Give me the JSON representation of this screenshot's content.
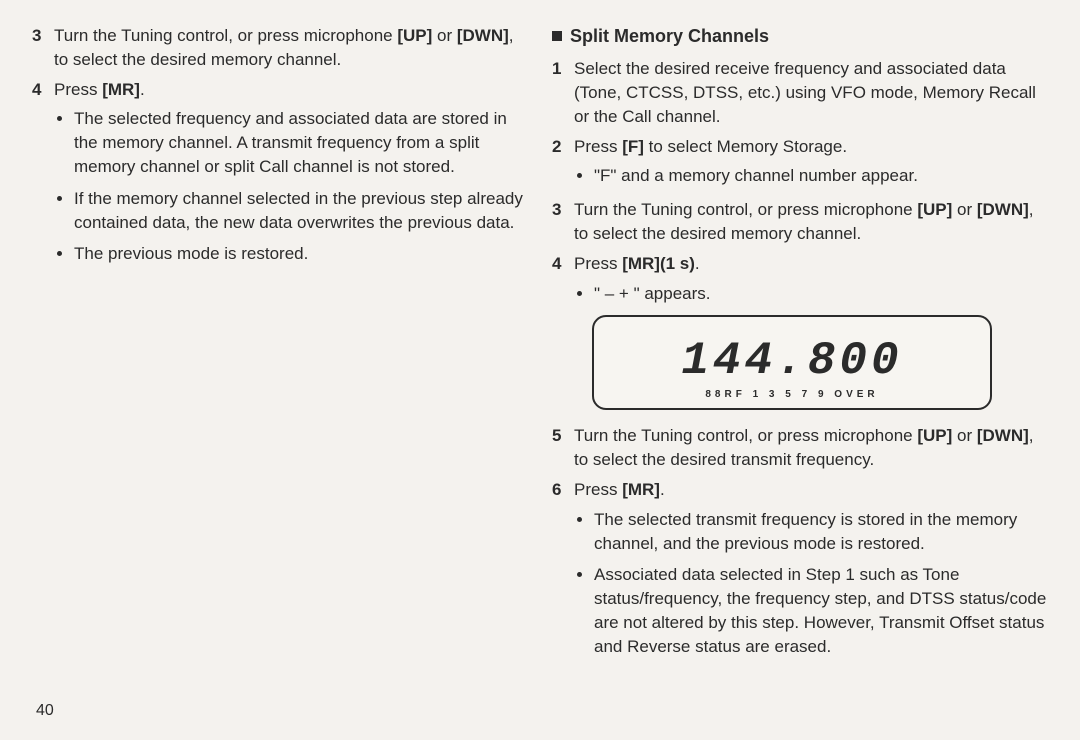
{
  "left": {
    "step3_num": "3",
    "step3_text_a": "Turn the Tuning control, or press microphone ",
    "step3_key1": "[UP]",
    "step3_text_b": " or ",
    "step3_key2": "[DWN]",
    "step3_text_c": ", to select the desired memory channel.",
    "step4_num": "4",
    "step4_text_a": "Press ",
    "step4_key1": "[MR]",
    "step4_text_b": ".",
    "bullets": [
      "The selected frequency and associated data are stored in the memory channel. A transmit frequency from a split memory channel or split Call channel is not stored.",
      "If the memory channel selected in the previous step already contained data, the new data overwrites the previous data.",
      "The previous mode is restored."
    ]
  },
  "right": {
    "title": "Split Memory Channels",
    "step1_num": "1",
    "step1_text": "Select the desired receive frequency and associated data (Tone, CTCSS, DTSS, etc.) using VFO mode, Memory Recall or the Call channel.",
    "step2_num": "2",
    "step2_text_a": "Press ",
    "step2_key1": "[F]",
    "step2_text_b": " to select Memory Storage.",
    "step2_bullet": "\"F\" and a memory channel number appear.",
    "step3_num": "3",
    "step3_text_a": "Turn the Tuning control, or press microphone ",
    "step3_key1": "[UP]",
    "step3_text_b": " or ",
    "step3_key2": "[DWN]",
    "step3_text_c": ", to select the desired memory channel.",
    "step4_num": "4",
    "step4_text_a": "Press ",
    "step4_key1": "[MR](1 s)",
    "step4_text_b": ".",
    "step4_bullet": "\" – + \" appears.",
    "lcd_indicator": "– +",
    "lcd_digits": "144.800",
    "lcd_sub": "88RF   1  3  5  7  9 OVER",
    "step5_num": "5",
    "step5_text_a": "Turn the Tuning control, or press microphone ",
    "step5_key1": "[UP]",
    "step5_text_b": " or ",
    "step5_key2": "[DWN]",
    "step5_text_c": ", to select the desired transmit frequency.",
    "step6_num": "6",
    "step6_text_a": "Press ",
    "step6_key1": "[MR]",
    "step6_text_b": ".",
    "step6_bullets": [
      "The selected transmit frequency is stored in the memory channel, and the previous mode is restored.",
      "Associated data selected in Step 1 such as Tone status/frequency, the frequency step, and DTSS status/code are not altered by this step. However, Transmit Offset status and Reverse status are erased."
    ]
  },
  "page_number": "40"
}
